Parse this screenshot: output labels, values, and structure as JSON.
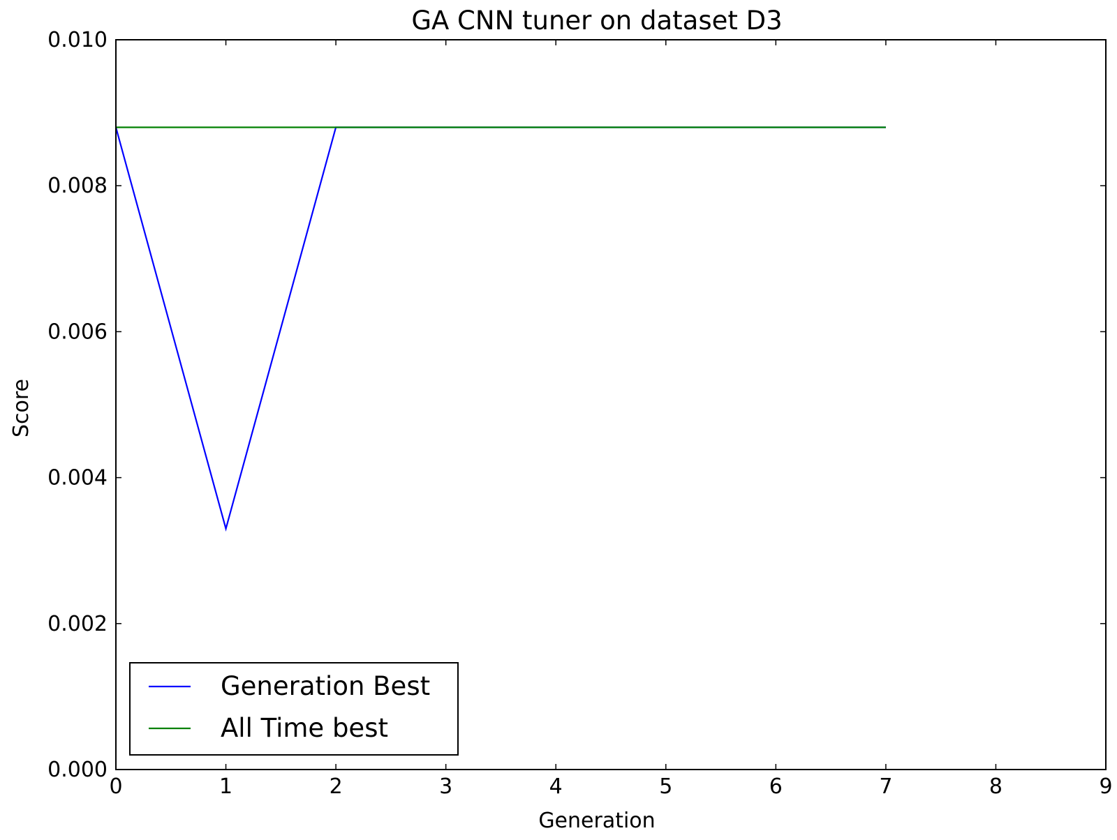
{
  "chart_data": {
    "type": "line",
    "title": "GA CNN tuner on dataset D3",
    "xlabel": "Generation",
    "ylabel": "Score",
    "xlim": [
      0,
      9
    ],
    "ylim": [
      0,
      0.01
    ],
    "x_ticks": [
      "0",
      "1",
      "2",
      "3",
      "4",
      "5",
      "6",
      "7",
      "8",
      "9"
    ],
    "y_ticks": [
      "0.000",
      "0.002",
      "0.004",
      "0.006",
      "0.008",
      "0.010"
    ],
    "grid": false,
    "legend_position": "lower-left",
    "series": [
      {
        "name": "Generation Best",
        "color": "#0000ff",
        "x": [
          0,
          1,
          2,
          3,
          4,
          5,
          6,
          7
        ],
        "y": [
          0.0088,
          0.0033,
          0.0088,
          0.0088,
          0.0088,
          0.0088,
          0.0088,
          0.0088
        ]
      },
      {
        "name": "All Time best",
        "color": "#008000",
        "x": [
          0,
          1,
          2,
          3,
          4,
          5,
          6,
          7
        ],
        "y": [
          0.0088,
          0.0088,
          0.0088,
          0.0088,
          0.0088,
          0.0088,
          0.0088,
          0.0088
        ]
      }
    ]
  }
}
